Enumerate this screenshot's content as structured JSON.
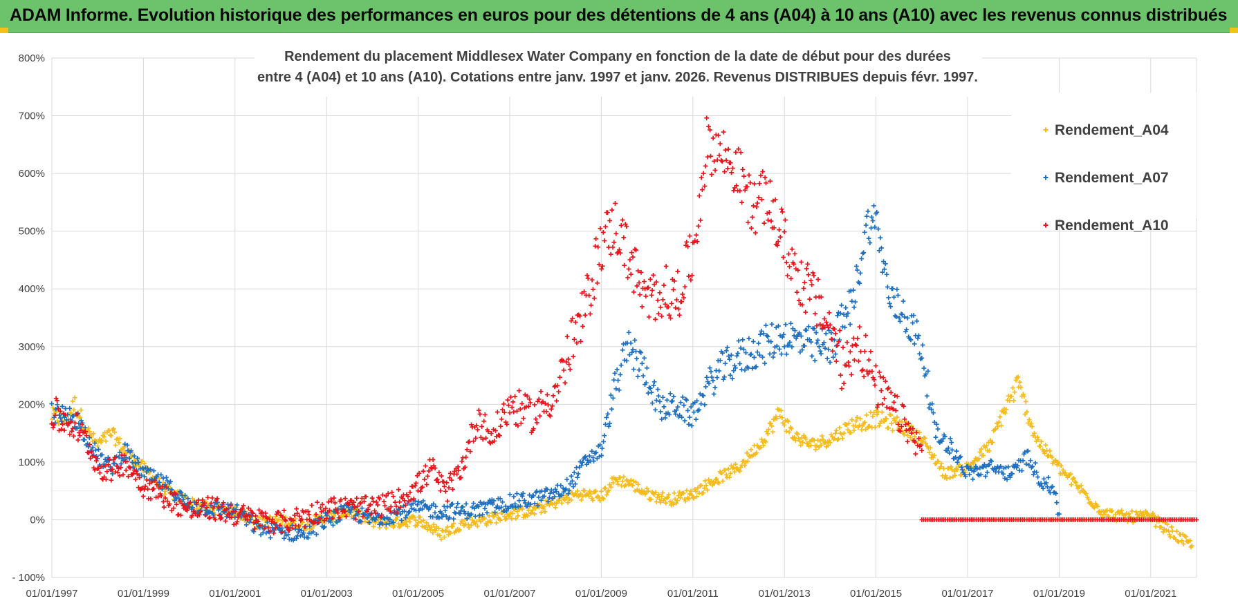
{
  "banner": {
    "title": "ADAM Informe. Evolution historique des performances en euros pour des détentions de 4 ans (A04) à 10 ans (A10) avec les revenus connus distribués"
  },
  "colors": {
    "banner_bg": "#6dc36b",
    "A04": "#f4bb1a",
    "A07": "#1f6fbf",
    "A10": "#e8141c",
    "grid": "#d9d9d9"
  },
  "chart_data": {
    "type": "scatter",
    "title_lines": [
      "Rendement du placement Middlesex Water Company en fonction de la date de début pour des durées",
      "entre 4 (A04) et 10 ans (A10). Cotations entre janv. 1997 et janv. 2026. Revenus DISTRIBUES depuis févr. 1997."
    ],
    "xlabel": "",
    "ylabel": "",
    "x_unit": "year",
    "xlim": [
      1997.0,
      2022.0
    ],
    "ylim": [
      -100,
      800
    ],
    "y_ticks": [
      "800%",
      "700%",
      "600%",
      "500%",
      "400%",
      "300%",
      "200%",
      "100%",
      "0%",
      "- 100%"
    ],
    "y_tick_values": [
      800,
      700,
      600,
      500,
      400,
      300,
      200,
      100,
      0,
      -100
    ],
    "x_ticks": [
      "01/01/1997",
      "01/01/1999",
      "01/01/2001",
      "01/01/2003",
      "01/01/2005",
      "01/01/2007",
      "01/01/2009",
      "01/01/2011",
      "01/01/2013",
      "01/01/2015",
      "01/01/2017",
      "01/01/2019",
      "01/01/2021"
    ],
    "x_tick_values": [
      1997,
      1999,
      2001,
      2003,
      2005,
      2007,
      2009,
      2011,
      2013,
      2015,
      2017,
      2019,
      2021
    ],
    "grid": true,
    "legend_position": "top-right",
    "series": [
      {
        "name": "Rendement_A04",
        "marker": "+",
        "x": [
          1997.0,
          1997.3,
          1997.5,
          1997.8,
          1998.0,
          1998.3,
          1998.6,
          1999.0,
          1999.5,
          2000.0,
          2000.5,
          2001.0,
          2001.5,
          2002.0,
          2002.5,
          2003.0,
          2003.5,
          2004.0,
          2004.5,
          2005.0,
          2005.5,
          2006.0,
          2006.5,
          2007.0,
          2007.5,
          2008.0,
          2008.5,
          2009.0,
          2009.3,
          2009.6,
          2010.0,
          2010.5,
          2011.0,
          2011.5,
          2012.0,
          2012.5,
          2012.9,
          2013.2,
          2013.6,
          2014.0,
          2014.5,
          2015.0,
          2015.5,
          2016.0,
          2016.5,
          2017.0,
          2017.5,
          2017.8,
          2018.1,
          2018.5,
          2019.0,
          2019.5,
          2020.0,
          2020.5,
          2021.0,
          2021.5,
          2021.9
        ],
        "y": [
          180,
          170,
          200,
          150,
          130,
          150,
          120,
          90,
          50,
          30,
          20,
          15,
          -5,
          0,
          -10,
          5,
          15,
          -5,
          -5,
          0,
          -25,
          -5,
          0,
          10,
          15,
          30,
          45,
          40,
          70,
          65,
          45,
          35,
          45,
          70,
          90,
          135,
          185,
          145,
          130,
          140,
          165,
          175,
          165,
          140,
          80,
          90,
          130,
          190,
          235,
          140,
          90,
          50,
          10,
          5,
          5,
          -25,
          -45
        ]
      },
      {
        "name": "Rendement_A07",
        "marker": "+",
        "x": [
          1997.0,
          1997.3,
          1997.5,
          1997.8,
          1998.0,
          1998.3,
          1998.6,
          1999.0,
          1999.5,
          2000.0,
          2000.5,
          2001.0,
          2001.5,
          2002.0,
          2002.5,
          2003.0,
          2003.5,
          2004.0,
          2004.5,
          2005.0,
          2005.5,
          2006.0,
          2006.5,
          2007.0,
          2007.5,
          2008.0,
          2008.3,
          2008.7,
          2009.0,
          2009.3,
          2009.6,
          2010.0,
          2010.3,
          2010.6,
          2011.0,
          2011.3,
          2011.6,
          2012.0,
          2012.5,
          2013.0,
          2013.3,
          2013.6,
          2014.0,
          2014.5,
          2014.8,
          2015.0,
          2015.3,
          2015.6,
          2016.0,
          2016.3,
          2016.6,
          2017.0,
          2017.5,
          2018.0,
          2018.3,
          2018.6,
          2018.9,
          2019.0
        ],
        "y": [
          185,
          175,
          180,
          140,
          110,
          90,
          120,
          80,
          60,
          25,
          20,
          15,
          -15,
          -20,
          -25,
          0,
          15,
          0,
          10,
          20,
          15,
          15,
          20,
          30,
          35,
          45,
          60,
          105,
          120,
          230,
          300,
          250,
          190,
          200,
          180,
          230,
          260,
          280,
          300,
          320,
          310,
          300,
          300,
          380,
          510,
          520,
          380,
          360,
          300,
          150,
          130,
          80,
          90,
          80,
          110,
          70,
          50,
          10
        ]
      },
      {
        "name": "Rendement_A10",
        "marker": "+",
        "x": [
          1997.0,
          1997.3,
          1997.5,
          1997.8,
          1998.0,
          1998.3,
          1998.6,
          1999.0,
          1999.5,
          2000.0,
          2000.5,
          2001.0,
          2001.5,
          2002.0,
          2002.5,
          2003.0,
          2003.5,
          2004.0,
          2004.5,
          2005.0,
          2005.3,
          2005.6,
          2006.0,
          2006.3,
          2006.6,
          2007.0,
          2007.5,
          2008.0,
          2008.3,
          2008.6,
          2009.0,
          2009.3,
          2009.6,
          2010.0,
          2010.3,
          2010.6,
          2011.0,
          2011.3,
          2011.6,
          2012.0,
          2012.3,
          2012.6,
          2013.0,
          2013.3,
          2013.6,
          2014.0,
          2014.3,
          2014.6,
          2015.0,
          2015.3,
          2015.6,
          2016.0
        ],
        "y": [
          185,
          170,
          165,
          130,
          90,
          85,
          100,
          60,
          40,
          15,
          20,
          10,
          0,
          -5,
          5,
          20,
          20,
          20,
          30,
          60,
          90,
          45,
          100,
          180,
          140,
          200,
          180,
          220,
          290,
          350,
          480,
          510,
          460,
          370,
          400,
          380,
          460,
          650,
          640,
          600,
          540,
          560,
          480,
          420,
          390,
          330,
          260,
          320,
          230,
          200,
          170,
          120
        ]
      }
    ],
    "zero_line": {
      "series": "Rendement_A10",
      "x_start": 2016.0,
      "x_end": 2022.0,
      "y": 0
    }
  }
}
